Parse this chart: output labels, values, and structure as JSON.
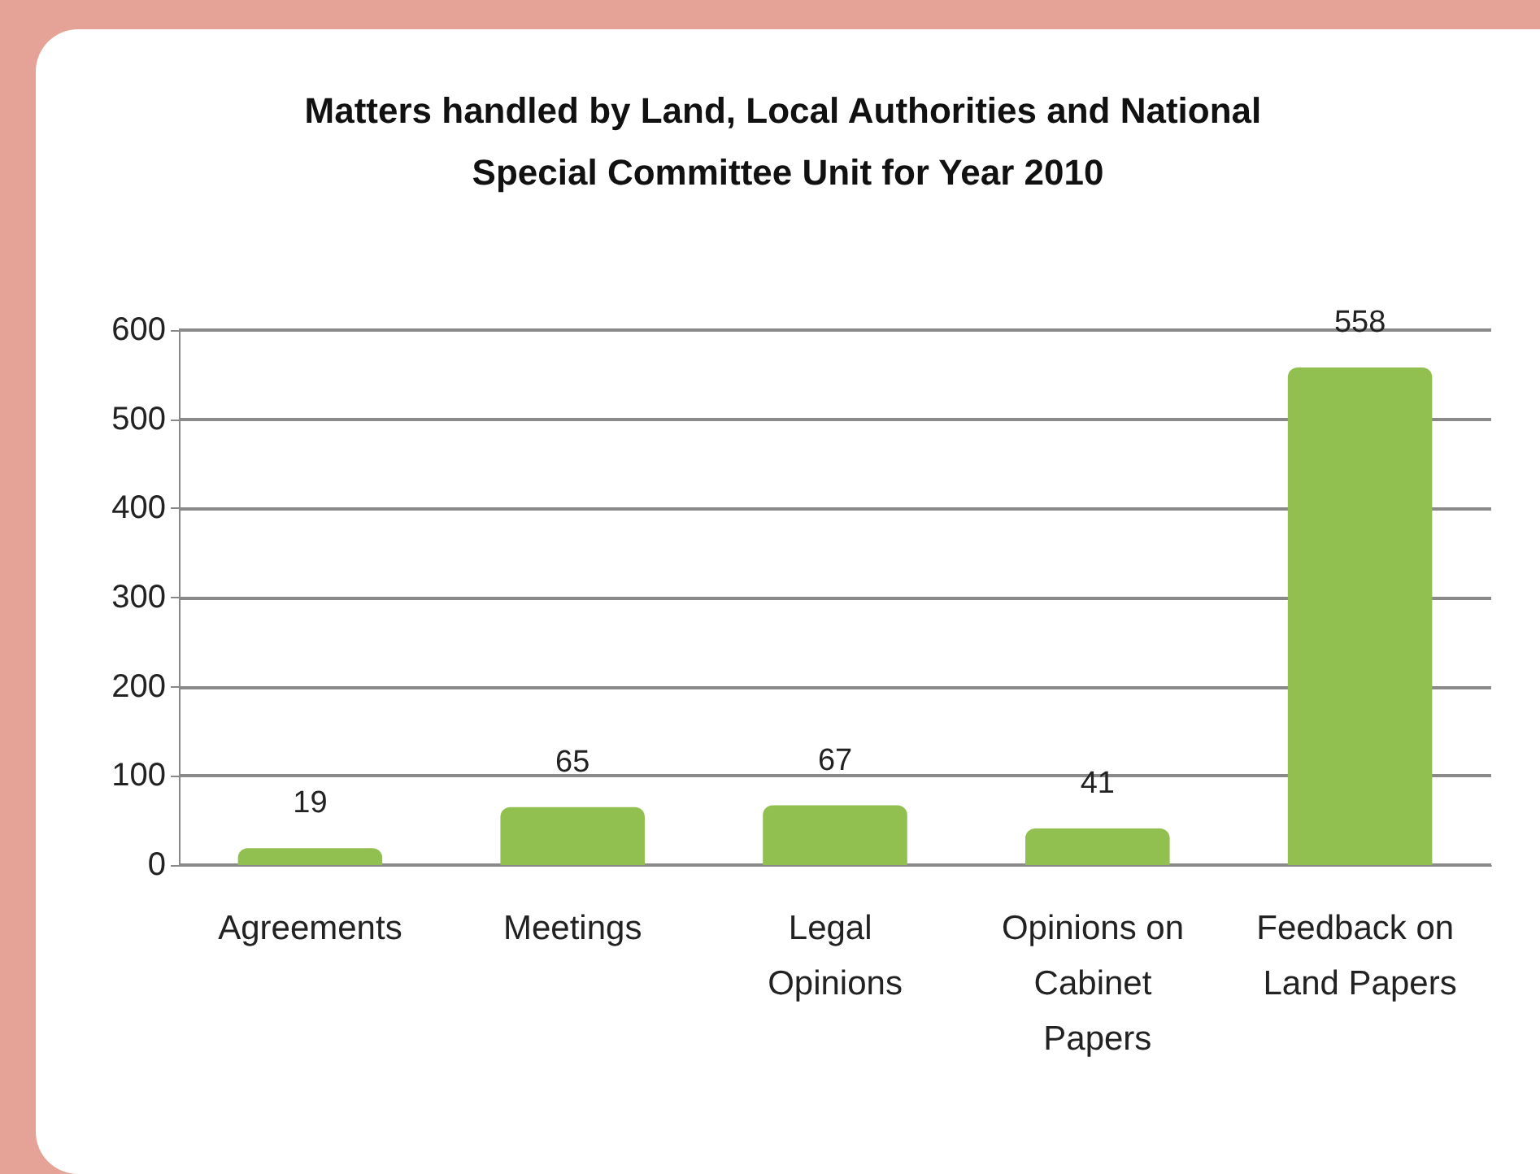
{
  "chart_data": {
    "type": "bar",
    "title": "Matters handled by Land, Local Authorities and National Special Committee Unit for Year 2010",
    "categories": [
      "Agreements",
      "Meetings",
      "Legal Opinions",
      "Opinions on Cabinet Papers",
      "Feedback on Land Papers"
    ],
    "values": [
      19,
      65,
      67,
      41,
      558
    ],
    "color": "#92c050",
    "ylim": [
      0,
      600
    ],
    "yticks": [
      0,
      100,
      200,
      300,
      400,
      500,
      600
    ],
    "grid": "y",
    "data_labels": true
  }
}
